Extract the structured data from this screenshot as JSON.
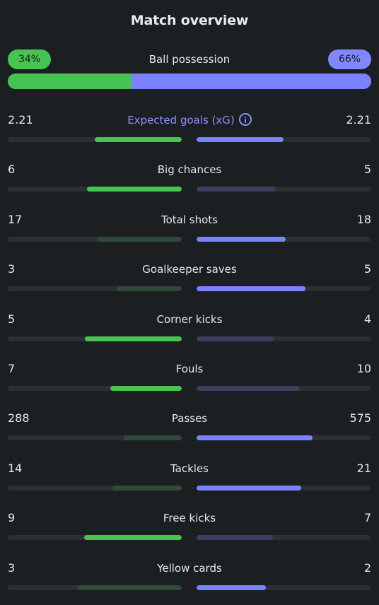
{
  "title": "Match overview",
  "colors": {
    "home_strong": "#45c452",
    "home_weak": "#2f4a38",
    "away_strong": "#7a82ff",
    "away_weak": "#3a3f5e"
  },
  "possession": {
    "label": "Ball possession",
    "home_display": "34%",
    "away_display": "66%",
    "home_fraction": 0.34
  },
  "stats": [
    {
      "key": "xg",
      "label": "Expected goals (xG)",
      "home": "2.21",
      "away": "2.21",
      "home_fraction": 0.5,
      "away_fraction": 0.5,
      "home_strong": true,
      "away_strong": true,
      "accent": true,
      "icon": "info-icon"
    },
    {
      "key": "big-chances",
      "label": "Big chances",
      "home": "6",
      "away": "5",
      "home_fraction": 0.545,
      "away_fraction": 0.455,
      "home_strong": true,
      "away_strong": false
    },
    {
      "key": "total-shots",
      "label": "Total shots",
      "home": "17",
      "away": "18",
      "home_fraction": 0.486,
      "away_fraction": 0.514,
      "home_strong": false,
      "away_strong": true
    },
    {
      "key": "goalkeeper-saves",
      "label": "Goalkeeper saves",
      "home": "3",
      "away": "5",
      "home_fraction": 0.375,
      "away_fraction": 0.625,
      "home_strong": false,
      "away_strong": true
    },
    {
      "key": "corner-kicks",
      "label": "Corner kicks",
      "home": "5",
      "away": "4",
      "home_fraction": 0.556,
      "away_fraction": 0.444,
      "home_strong": true,
      "away_strong": false
    },
    {
      "key": "fouls",
      "label": "Fouls",
      "home": "7",
      "away": "10",
      "home_fraction": 0.412,
      "away_fraction": 0.588,
      "home_strong": true,
      "away_strong": false
    },
    {
      "key": "passes",
      "label": "Passes",
      "home": "288",
      "away": "575",
      "home_fraction": 0.334,
      "away_fraction": 0.666,
      "home_strong": false,
      "away_strong": true
    },
    {
      "key": "tackles",
      "label": "Tackles",
      "home": "14",
      "away": "21",
      "home_fraction": 0.4,
      "away_fraction": 0.6,
      "home_strong": false,
      "away_strong": true
    },
    {
      "key": "free-kicks",
      "label": "Free kicks",
      "home": "9",
      "away": "7",
      "home_fraction": 0.5625,
      "away_fraction": 0.4375,
      "home_strong": true,
      "away_strong": false
    },
    {
      "key": "yellow-cards",
      "label": "Yellow cards",
      "home": "3",
      "away": "2",
      "home_fraction": 0.6,
      "away_fraction": 0.4,
      "home_strong": false,
      "away_strong": true
    }
  ]
}
